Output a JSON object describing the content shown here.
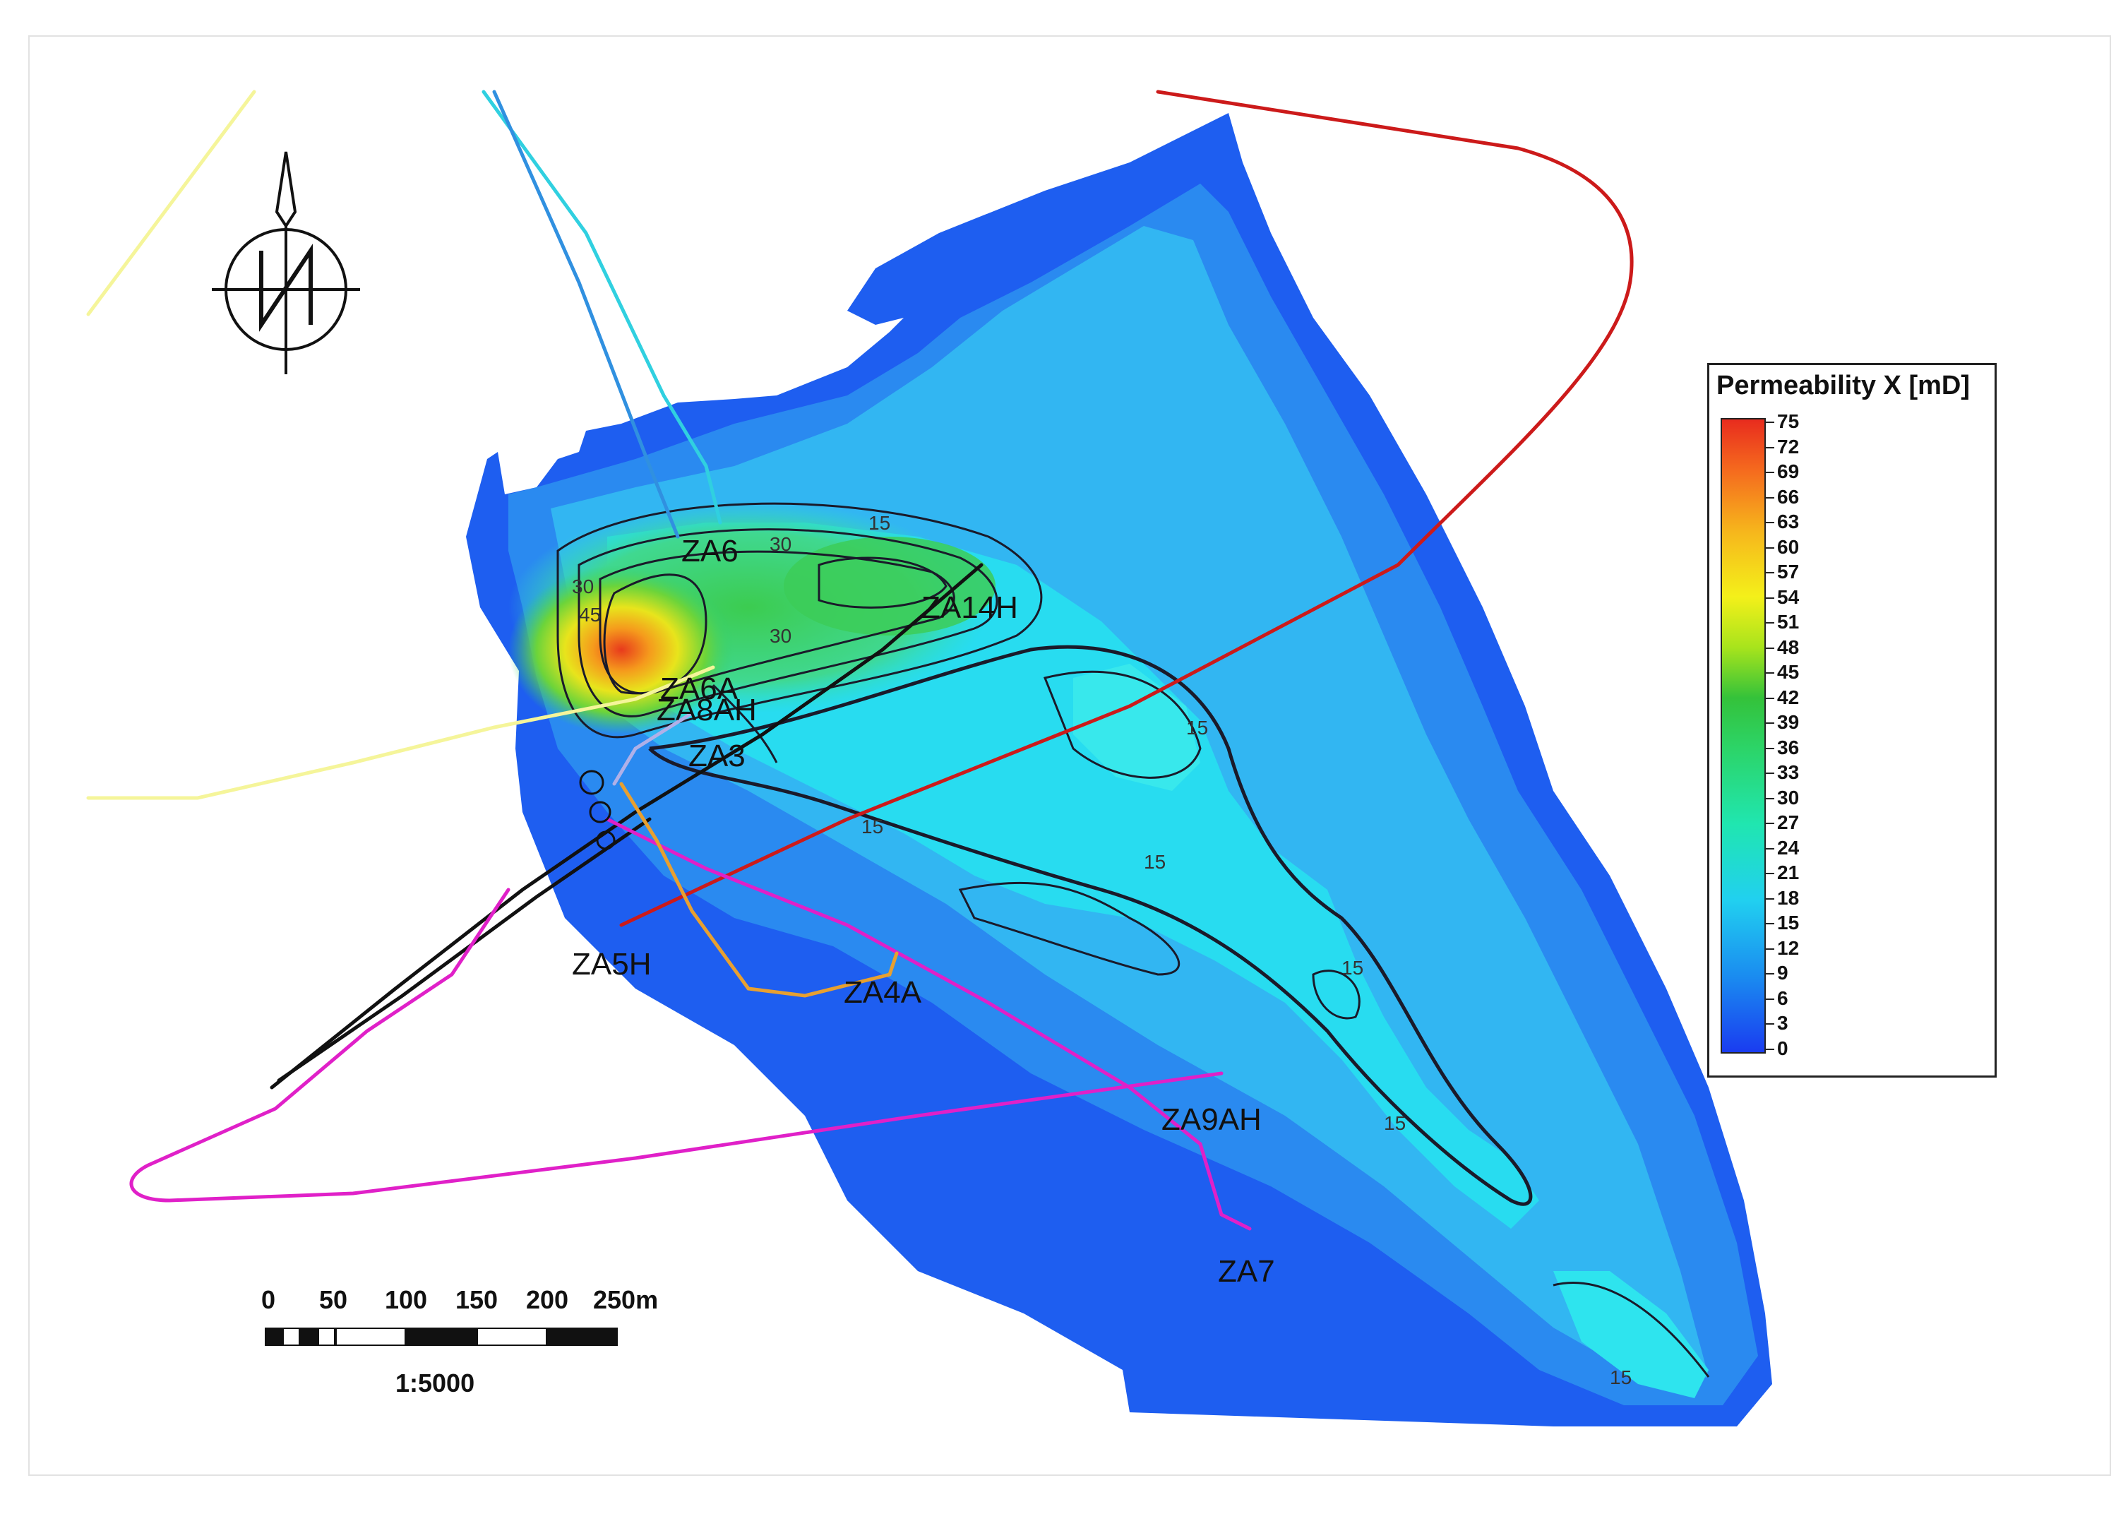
{
  "legend": {
    "title": "Permeability X [mD]",
    "ticks": [
      "75",
      "72",
      "69",
      "66",
      "63",
      "60",
      "57",
      "54",
      "51",
      "48",
      "45",
      "42",
      "39",
      "36",
      "33",
      "30",
      "27",
      "24",
      "21",
      "18",
      "15",
      "12",
      "9",
      "6",
      "3",
      "0"
    ]
  },
  "wells": {
    "za6": "ZA6",
    "za14h": "ZA14H",
    "za6a": "ZA6A",
    "za8ah": "ZA8AH",
    "za3": "ZA3",
    "za5h": "ZA5H",
    "za4a": "ZA4A",
    "za9ah": "ZA9AH",
    "za7": "ZA7"
  },
  "contours": {
    "c15": "15",
    "c30": "30",
    "c45": "45"
  },
  "scale_bar": {
    "labels": [
      "0",
      "50",
      "100",
      "150",
      "200",
      "250m"
    ],
    "ratio": "1:5000"
  },
  "colors": {
    "low": "#1a3cf0",
    "mid": "#21d0f0",
    "high": "#e82c1e",
    "well_red": "#cc1a1a",
    "well_magenta": "#e020c8",
    "well_yellow": "#f5f59a",
    "well_orange": "#e8a030",
    "well_black": "#111111"
  },
  "icons": {
    "north_arrow": "north-arrow-icon"
  }
}
